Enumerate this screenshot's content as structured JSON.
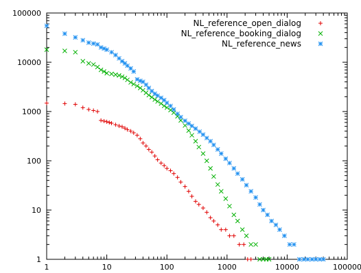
{
  "chart_data": {
    "type": "scatter",
    "title": "",
    "xlabel": "",
    "ylabel": "",
    "x_scale": "log",
    "y_scale": "log",
    "xlim": [
      1,
      100000
    ],
    "ylim": [
      1,
      100000
    ],
    "x_ticks": [
      "1",
      "10",
      "100",
      "1000",
      "10000",
      "100000"
    ],
    "y_ticks": [
      "1",
      "10",
      "100",
      "1000",
      "10000",
      "100000"
    ],
    "grid": false,
    "legend": "top-right",
    "series": [
      {
        "name": "NL_reference_open_dialog",
        "marker": "plus",
        "color": "#e00000",
        "points": [
          [
            1,
            1480
          ],
          [
            2,
            1450
          ],
          [
            3,
            1400
          ],
          [
            4,
            1200
          ],
          [
            5,
            1100
          ],
          [
            6,
            1050
          ],
          [
            7,
            1000
          ],
          [
            8,
            660
          ],
          [
            9,
            640
          ],
          [
            10,
            620
          ],
          [
            11,
            600
          ],
          [
            12,
            580
          ],
          [
            14,
            540
          ],
          [
            16,
            510
          ],
          [
            18,
            490
          ],
          [
            20,
            460
          ],
          [
            22,
            430
          ],
          [
            25,
            400
          ],
          [
            28,
            370
          ],
          [
            32,
            330
          ],
          [
            36,
            280
          ],
          [
            40,
            230
          ],
          [
            45,
            200
          ],
          [
            50,
            170
          ],
          [
            56,
            150
          ],
          [
            63,
            125
          ],
          [
            70,
            105
          ],
          [
            80,
            90
          ],
          [
            90,
            80
          ],
          [
            100,
            70
          ],
          [
            115,
            63
          ],
          [
            130,
            55
          ],
          [
            150,
            46
          ],
          [
            170,
            37
          ],
          [
            200,
            30
          ],
          [
            230,
            24
          ],
          [
            260,
            19
          ],
          [
            300,
            15
          ],
          [
            340,
            13
          ],
          [
            400,
            11
          ],
          [
            460,
            9
          ],
          [
            530,
            7
          ],
          [
            600,
            6
          ],
          [
            700,
            5
          ],
          [
            800,
            4
          ],
          [
            950,
            4
          ],
          [
            1100,
            3
          ],
          [
            1300,
            3
          ],
          [
            1600,
            2
          ],
          [
            1900,
            2
          ],
          [
            2200,
            1
          ],
          [
            2500,
            1
          ]
        ]
      },
      {
        "name": "NL_reference_booking_dialog",
        "marker": "cross",
        "color": "#00b000",
        "points": [
          [
            1,
            18000
          ],
          [
            2,
            17000
          ],
          [
            3,
            16000
          ],
          [
            4,
            10500
          ],
          [
            5,
            9500
          ],
          [
            6,
            9000
          ],
          [
            7,
            8000
          ],
          [
            8,
            7000
          ],
          [
            9,
            6500
          ],
          [
            10,
            6000
          ],
          [
            12,
            5800
          ],
          [
            14,
            5600
          ],
          [
            16,
            5400
          ],
          [
            18,
            5100
          ],
          [
            20,
            4800
          ],
          [
            22,
            4400
          ],
          [
            25,
            3900
          ],
          [
            28,
            3600
          ],
          [
            32,
            3300
          ],
          [
            36,
            3000
          ],
          [
            40,
            2700
          ],
          [
            45,
            2400
          ],
          [
            50,
            2150
          ],
          [
            56,
            1950
          ],
          [
            63,
            1750
          ],
          [
            70,
            1600
          ],
          [
            80,
            1450
          ],
          [
            90,
            1300
          ],
          [
            100,
            1200
          ],
          [
            115,
            1070
          ],
          [
            130,
            950
          ],
          [
            150,
            800
          ],
          [
            170,
            660
          ],
          [
            200,
            520
          ],
          [
            230,
            410
          ],
          [
            260,
            330
          ],
          [
            300,
            250
          ],
          [
            340,
            190
          ],
          [
            400,
            140
          ],
          [
            460,
            100
          ],
          [
            530,
            70
          ],
          [
            600,
            48
          ],
          [
            700,
            33
          ],
          [
            800,
            24
          ],
          [
            950,
            17
          ],
          [
            1100,
            12
          ],
          [
            1300,
            8
          ],
          [
            1500,
            6
          ],
          [
            1800,
            4
          ],
          [
            2100,
            3
          ],
          [
            2500,
            2
          ],
          [
            3000,
            2
          ],
          [
            3500,
            1
          ],
          [
            4000,
            1
          ],
          [
            4500,
            1
          ],
          [
            5000,
            1
          ]
        ]
      },
      {
        "name": "NL_reference_news",
        "marker": "star",
        "color": "#1e8ff0",
        "points": [
          [
            1,
            55000
          ],
          [
            2,
            38000
          ],
          [
            3,
            32000
          ],
          [
            4,
            28000
          ],
          [
            5,
            25000
          ],
          [
            6,
            24000
          ],
          [
            7,
            23000
          ],
          [
            8,
            20000
          ],
          [
            9,
            19000
          ],
          [
            10,
            18000
          ],
          [
            12,
            16000
          ],
          [
            14,
            14000
          ],
          [
            16,
            12000
          ],
          [
            18,
            10500
          ],
          [
            20,
            9500
          ],
          [
            22,
            8500
          ],
          [
            25,
            7500
          ],
          [
            28,
            6500
          ],
          [
            32,
            4500
          ],
          [
            36,
            4200
          ],
          [
            40,
            4000
          ],
          [
            45,
            3500
          ],
          [
            50,
            3000
          ],
          [
            56,
            2600
          ],
          [
            63,
            2300
          ],
          [
            70,
            2100
          ],
          [
            80,
            1900
          ],
          [
            90,
            1700
          ],
          [
            100,
            1500
          ],
          [
            115,
            1300
          ],
          [
            130,
            1100
          ],
          [
            150,
            900
          ],
          [
            170,
            770
          ],
          [
            200,
            650
          ],
          [
            230,
            570
          ],
          [
            260,
            510
          ],
          [
            300,
            450
          ],
          [
            350,
            390
          ],
          [
            400,
            340
          ],
          [
            460,
            290
          ],
          [
            530,
            250
          ],
          [
            600,
            210
          ],
          [
            700,
            170
          ],
          [
            800,
            140
          ],
          [
            950,
            110
          ],
          [
            1100,
            90
          ],
          [
            1300,
            70
          ],
          [
            1500,
            55
          ],
          [
            1800,
            42
          ],
          [
            2100,
            32
          ],
          [
            2500,
            24
          ],
          [
            3000,
            18
          ],
          [
            3500,
            13
          ],
          [
            4000,
            10
          ],
          [
            4700,
            8
          ],
          [
            5500,
            6
          ],
          [
            6500,
            5
          ],
          [
            7500,
            4
          ],
          [
            9000,
            3
          ],
          [
            11000,
            2
          ],
          [
            13000,
            2
          ],
          [
            16000,
            1
          ],
          [
            19000,
            1
          ],
          [
            22000,
            1
          ],
          [
            26000,
            1
          ],
          [
            30000,
            1
          ],
          [
            35000,
            1
          ],
          [
            40000,
            1
          ]
        ]
      }
    ]
  }
}
